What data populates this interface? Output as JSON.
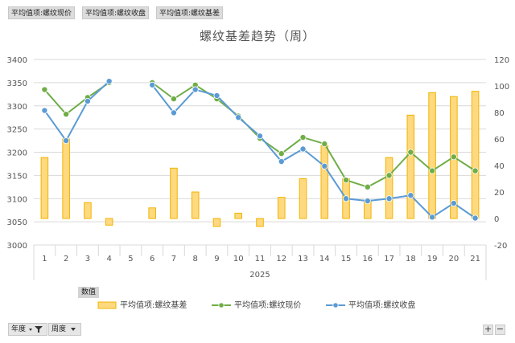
{
  "filters": {
    "field1": "平均值项:螺纹现价",
    "field2": "平均值项:螺纹收盘",
    "field3": "平均值项:螺纹基差"
  },
  "values_tag": "数值",
  "bottom": {
    "year_btn": "年度",
    "week_btn": "周度",
    "plus": "+",
    "minus": "−"
  },
  "chart_data": {
    "type": "bar-line-combo",
    "title": "螺纹基差趋势（周）",
    "categories": [
      "1",
      "2",
      "3",
      "4",
      "5",
      "6",
      "7",
      "8",
      "9",
      "10",
      "11",
      "12",
      "13",
      "14",
      "15",
      "16",
      "17",
      "18",
      "19",
      "20",
      "21"
    ],
    "group_label": "2025",
    "left_axis": {
      "ylim": [
        3000,
        3400
      ],
      "ticks": [
        3000,
        3050,
        3100,
        3150,
        3200,
        3250,
        3300,
        3350,
        3400
      ]
    },
    "right_axis": {
      "ylim": [
        -20,
        120
      ],
      "ticks": [
        -20,
        0,
        20,
        40,
        60,
        80,
        100,
        120
      ]
    },
    "series": [
      {
        "name": "平均值项:螺纹基差",
        "kind": "bar",
        "axis": "right",
        "color": "#FFD980",
        "values": [
          46,
          60,
          12,
          -5,
          null,
          8,
          38,
          20,
          -6,
          4,
          -6,
          16,
          30,
          55,
          30,
          14,
          46,
          78,
          95,
          92,
          96
        ]
      },
      {
        "name": "平均值项:螺纹现价",
        "kind": "line",
        "axis": "left",
        "color": "#70AD47",
        "values": [
          3335,
          3282,
          3318,
          3350,
          null,
          3350,
          3315,
          3345,
          3315,
          3278,
          3230,
          3197,
          3232,
          3218,
          3140,
          3125,
          3150,
          3200,
          3160,
          3190,
          3160
        ]
      },
      {
        "name": "平均值项:螺纹收盘",
        "kind": "line",
        "axis": "left",
        "color": "#5B9BD5",
        "values": [
          3290,
          3225,
          3310,
          3353,
          null,
          3345,
          3285,
          3335,
          3322,
          3275,
          3235,
          3180,
          3207,
          3170,
          3100,
          3095,
          3100,
          3107,
          3060,
          3090,
          3058
        ]
      }
    ]
  }
}
